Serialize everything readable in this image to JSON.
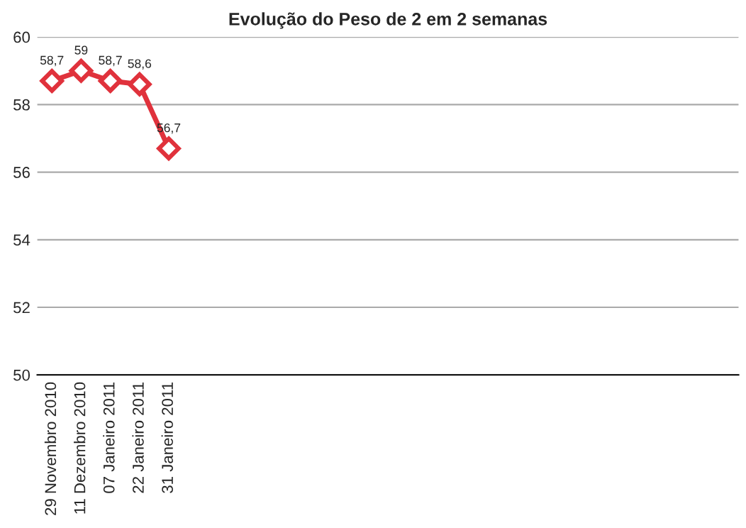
{
  "chart_data": {
    "type": "line",
    "title": "Evolução do Peso de 2 em 2 semanas",
    "categories": [
      "29 Novembro 2010",
      "11 Dezembro 2010",
      "07 Janeiro 2011",
      "22 Janeiro 2011",
      "31 Janeiro 2011",
      null,
      null,
      null,
      null,
      null,
      null,
      null,
      null,
      null,
      null,
      null,
      null,
      null,
      null,
      null,
      null,
      null,
      null,
      null
    ],
    "series": [
      {
        "color": "#e0323c",
        "values": [
          58.7,
          59,
          58.7,
          58.6,
          56.7,
          null,
          null,
          null,
          null,
          null,
          null,
          null,
          null,
          null,
          null,
          null,
          null,
          null,
          null,
          null,
          null,
          null,
          null,
          null
        ],
        "value_labels": [
          "58,7",
          "59",
          "58,7",
          "58,6",
          "56,7",
          null,
          null,
          null,
          null,
          null,
          null,
          null,
          null,
          null,
          null,
          null,
          null,
          null,
          null,
          null,
          null,
          null,
          null,
          null
        ]
      }
    ],
    "ylim": [
      50,
      60
    ],
    "yticks": [
      50,
      52,
      54,
      56,
      58,
      60
    ],
    "grid": "y",
    "marker": "diamond",
    "line_style": "solid"
  }
}
